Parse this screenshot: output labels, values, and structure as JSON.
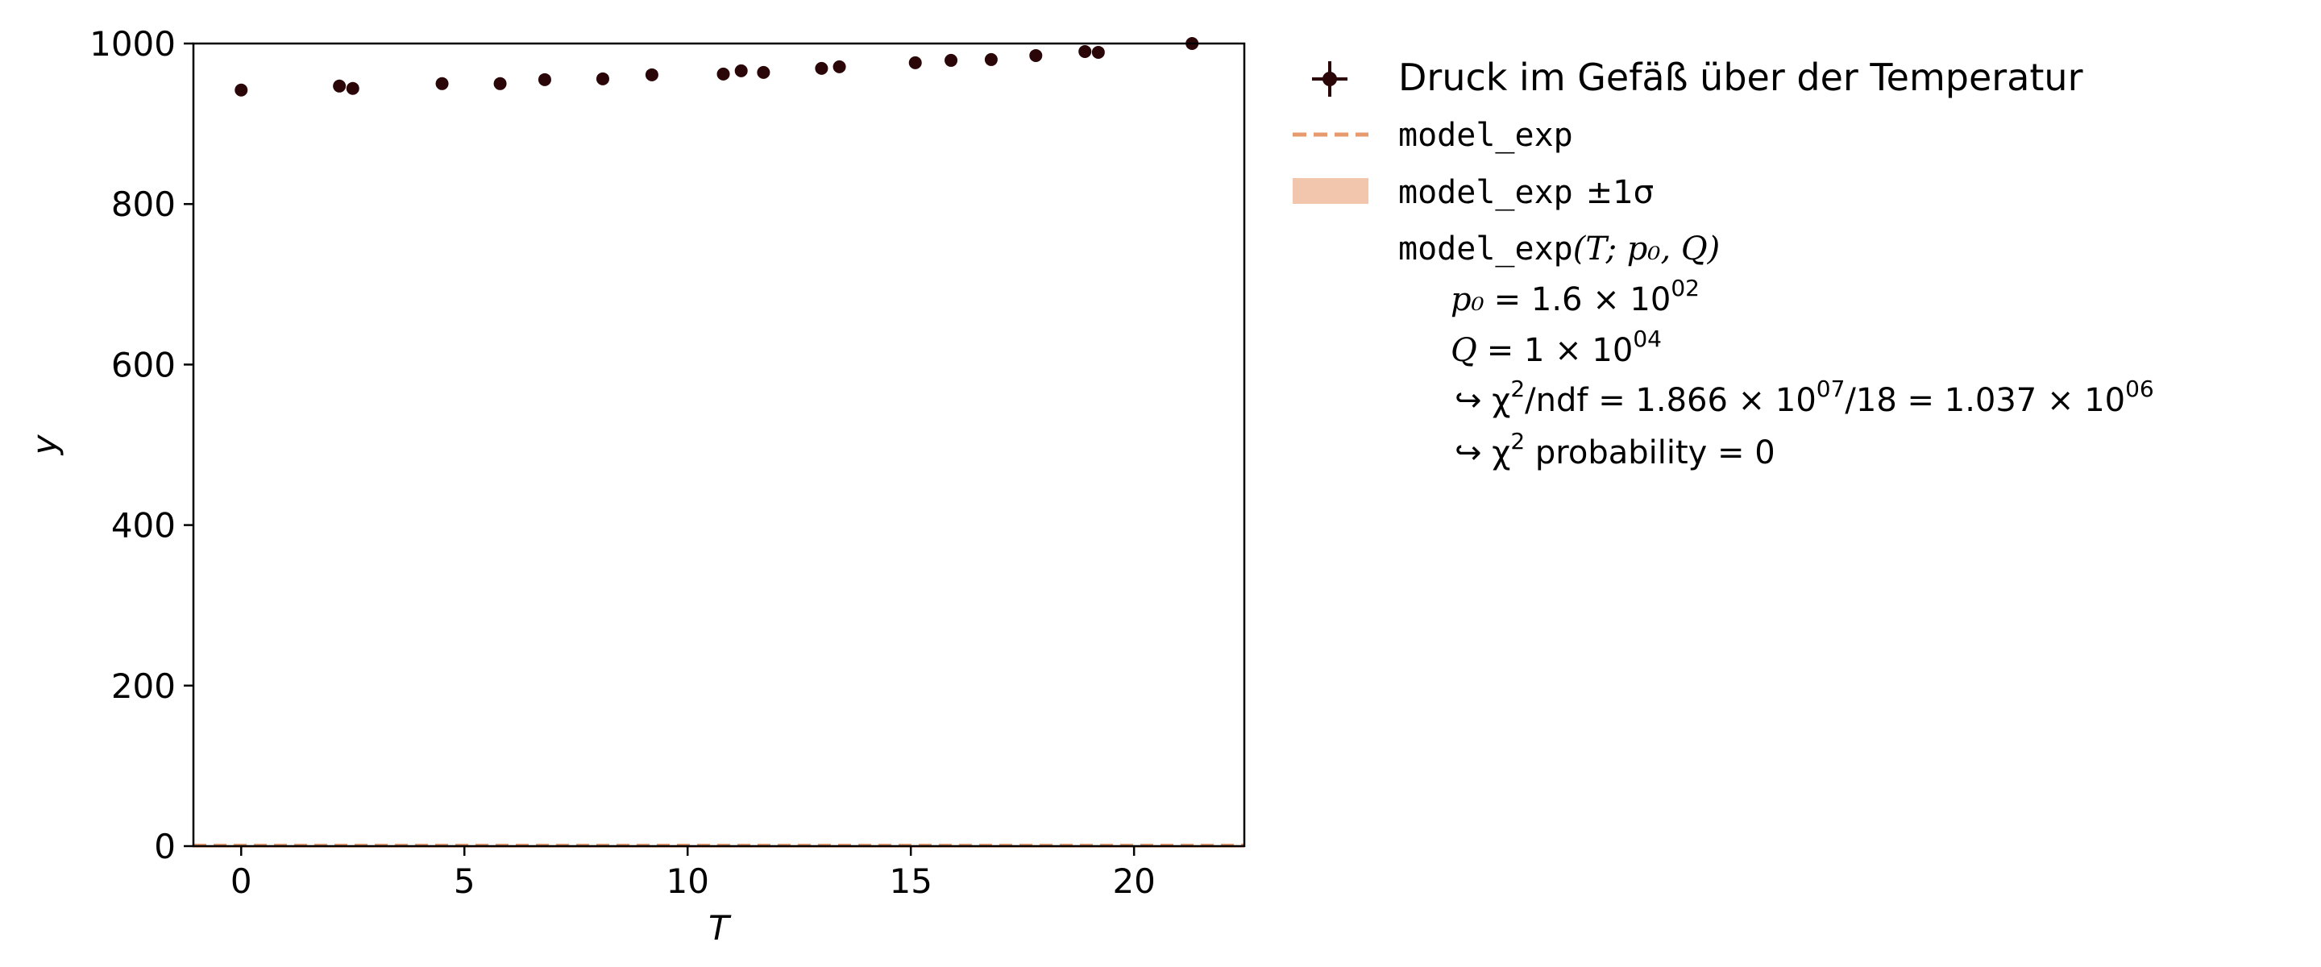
{
  "chart_data": {
    "type": "scatter",
    "xlabel": "T",
    "ylabel": "y",
    "xlim": [
      -1.07,
      22.47
    ],
    "ylim": [
      0,
      1000
    ],
    "x_ticks": [
      0,
      5,
      10,
      15,
      20
    ],
    "y_ticks": [
      0,
      200,
      400,
      600,
      800,
      1000
    ],
    "x_tick_labels": [
      "0",
      "5",
      "10",
      "15",
      "20"
    ],
    "y_tick_labels": [
      "0",
      "200",
      "400",
      "600",
      "800",
      "1000"
    ],
    "grid": false,
    "legend_position": "outside-right",
    "series": [
      {
        "name": "Druck im Gefäß über der Temperatur",
        "kind": "data-points",
        "color": "#2a0608",
        "x": [
          0.0,
          2.2,
          2.5,
          4.5,
          5.8,
          6.8,
          8.1,
          9.2,
          10.8,
          11.2,
          11.7,
          13.0,
          13.4,
          15.1,
          15.9,
          16.8,
          17.8,
          18.9,
          19.2,
          21.3
        ],
        "y": [
          942,
          947,
          944,
          950,
          950,
          955,
          956,
          961,
          962,
          966,
          964,
          969,
          971,
          976,
          979,
          980,
          985,
          990,
          989,
          1000
        ]
      },
      {
        "name": "model_exp",
        "kind": "model-line",
        "line_style": "dashed",
        "color": "#e69a6e",
        "x": [
          -1.07,
          22.47
        ],
        "y": [
          0,
          0
        ]
      },
      {
        "name": "model_exp ±1σ",
        "kind": "error-band",
        "color": "#f2c6ad",
        "x": [
          -1.07,
          22.47
        ],
        "y_low": [
          0,
          0
        ],
        "y_high": [
          0,
          0
        ]
      }
    ],
    "legend": {
      "entries": [
        {
          "kind": "marker",
          "label": "Druck im Gefäß über der Temperatur"
        },
        {
          "kind": "dashed-line",
          "label": "model_exp"
        },
        {
          "kind": "band",
          "label_mono": "model_exp",
          "label_math": "±1σ"
        }
      ],
      "model_info": {
        "function_mono": "model_exp",
        "function_args": "(T; p₀, Q)",
        "params": [
          {
            "name": "p₀",
            "mantissa": "= 1.6 × 10",
            "exponent": "02"
          },
          {
            "name": "Q",
            "mantissa": "= 1 × 10",
            "exponent": "04"
          }
        ],
        "chi2_ndf_parts": [
          "↪ χ",
          "2",
          "/ndf = 1.866 × 10",
          "07",
          "/18 = 1.037 × 10",
          "06"
        ],
        "chi2_prob_parts": [
          "↪ χ",
          "2",
          " probability = 0"
        ]
      }
    },
    "colors": {
      "data": "#2a0608",
      "model_line": "#e69a6e",
      "band": "#f2c6ad",
      "axis": "#000000"
    }
  }
}
